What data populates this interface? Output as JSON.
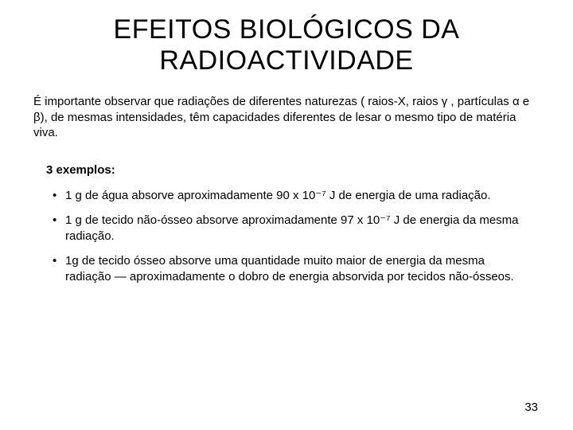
{
  "title": "EFEITOS BIOLÓGICOS DA RADIOACTIVIDADE",
  "intro": "É importante observar que radiações de diferentes naturezas ( raios-X, raios γ , partículas α e β), de mesmas intensidades, têm capacidades diferentes de lesar o mesmo tipo de matéria viva.",
  "examples_label": "3 exemplos:",
  "bullets": [
    "1 g de água absorve aproximadamente 90 x 10⁻⁷ J de energia de uma radiação.",
    "1 g de tecido não-ósseo absorve aproximadamente 97 x 10⁻⁷ J de energia da mesma radiação.",
    "1g de tecido ósseo absorve uma quantidade muito maior de energia da mesma radiação — aproximadamente o dobro de energia absorvida por tecidos não-ósseos."
  ],
  "page_number": "33"
}
